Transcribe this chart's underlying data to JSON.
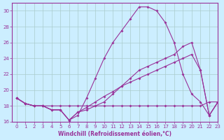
{
  "xlabel": "Windchill (Refroidissement éolien,°C)",
  "bg_color": "#cceeff",
  "line_color": "#993399",
  "grid_color": "#aacccc",
  "xlim": [
    -0.5,
    23
  ],
  "ylim": [
    16,
    31
  ],
  "yticks": [
    16,
    18,
    20,
    22,
    24,
    26,
    28,
    30
  ],
  "xticks": [
    0,
    1,
    2,
    3,
    4,
    5,
    6,
    7,
    8,
    9,
    10,
    11,
    12,
    13,
    14,
    15,
    16,
    17,
    18,
    19,
    20,
    21,
    22,
    23
  ],
  "line1_x": [
    0,
    1,
    2,
    3,
    4,
    5,
    6,
    7,
    8,
    9,
    10,
    11,
    12,
    13,
    14,
    15,
    16,
    17,
    18,
    19,
    20,
    21,
    22,
    23
  ],
  "line1_y": [
    19.0,
    18.3,
    18.0,
    18.0,
    18.0,
    18.0,
    18.0,
    18.0,
    18.0,
    18.0,
    18.0,
    18.0,
    18.0,
    18.0,
    18.0,
    18.0,
    18.0,
    18.0,
    18.0,
    18.0,
    18.0,
    18.0,
    18.5,
    18.5
  ],
  "line2_x": [
    0,
    1,
    2,
    3,
    4,
    5,
    6,
    7,
    8,
    9,
    10,
    11,
    12,
    13,
    14,
    15,
    16,
    17,
    18,
    19,
    20,
    21,
    22,
    23
  ],
  "line2_y": [
    19.0,
    18.3,
    18.0,
    18.0,
    17.5,
    17.5,
    16.2,
    16.8,
    19.0,
    21.5,
    24.0,
    26.0,
    27.5,
    29.0,
    30.5,
    30.5,
    30.0,
    28.5,
    26.0,
    22.0,
    19.5,
    18.5,
    16.8,
    18.5
  ],
  "line3_x": [
    0,
    1,
    2,
    3,
    4,
    5,
    6,
    7,
    8,
    9,
    10,
    11,
    12,
    13,
    14,
    15,
    16,
    17,
    18,
    19,
    20,
    21,
    22,
    23
  ],
  "line3_y": [
    19.0,
    18.3,
    18.0,
    18.0,
    17.5,
    17.5,
    16.2,
    17.2,
    17.5,
    18.0,
    18.5,
    19.5,
    20.5,
    21.5,
    22.5,
    23.0,
    23.5,
    24.0,
    24.5,
    25.5,
    26.0,
    22.5,
    16.8,
    18.5
  ],
  "line4_x": [
    0,
    1,
    2,
    3,
    4,
    5,
    6,
    7,
    8,
    9,
    10,
    11,
    12,
    13,
    14,
    15,
    16,
    17,
    18,
    19,
    20,
    21,
    22,
    23
  ],
  "line4_y": [
    19.0,
    18.3,
    18.0,
    18.0,
    17.5,
    17.5,
    16.2,
    17.2,
    17.8,
    18.5,
    19.2,
    19.8,
    20.5,
    21.0,
    21.5,
    22.0,
    22.5,
    23.0,
    23.5,
    24.0,
    24.5,
    22.5,
    16.8,
    18.5
  ]
}
